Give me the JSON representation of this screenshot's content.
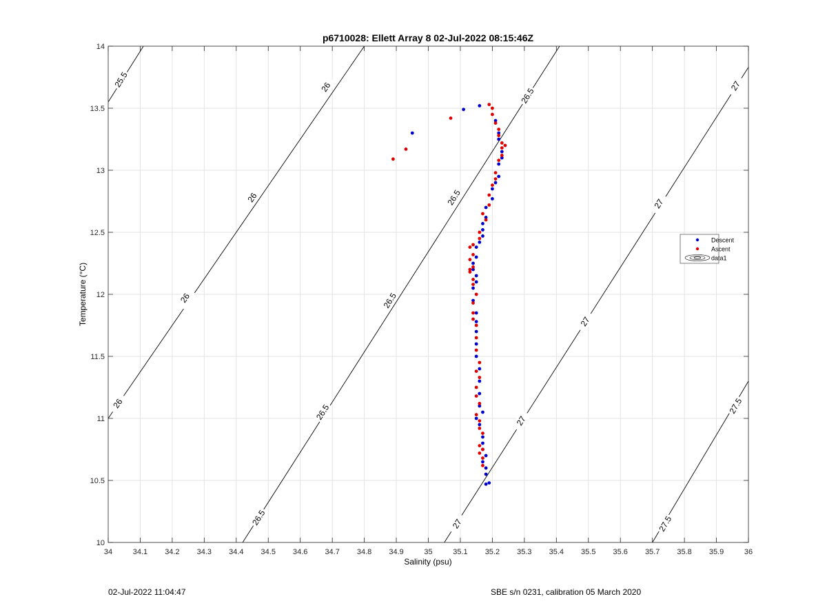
{
  "chart_data": {
    "type": "scatter",
    "title": "p6710028: Ellett Array 8 02-Jul-2022 08:15:46Z",
    "xlabel": "Salinity (psu)",
    "ylabel": "Temperature (°C)",
    "xlim": [
      34,
      36
    ],
    "ylim": [
      10,
      14
    ],
    "xticks": [
      "34",
      "34.1",
      "34.2",
      "34.3",
      "34.4",
      "34.5",
      "34.6",
      "34.7",
      "34.8",
      "34.9",
      "35",
      "35.1",
      "35.2",
      "35.3",
      "35.4",
      "35.5",
      "35.6",
      "35.7",
      "35.8",
      "35.9",
      "36"
    ],
    "yticks": [
      "10",
      "10.5",
      "11",
      "11.5",
      "12",
      "12.5",
      "13",
      "13.5",
      "14"
    ],
    "grid": true,
    "legend": {
      "placement": "right",
      "entries": [
        {
          "label": "Descent",
          "color": "#0000cc",
          "marker": "dot"
        },
        {
          "label": "Ascent",
          "color": "#dd0000",
          "marker": "dot"
        },
        {
          "label": "data1",
          "color": "#000000",
          "marker": "contour"
        }
      ]
    },
    "contours": [
      {
        "label": "25.5",
        "points": [
          [
            34,
            13.55
          ],
          [
            34.11,
            14
          ]
        ],
        "label_positions": [
          [
            34.04,
            13.73
          ]
        ]
      },
      {
        "label": "26",
        "points": [
          [
            34,
            11
          ],
          [
            34.8,
            14
          ]
        ],
        "label_positions": [
          [
            34.03,
            11.12
          ],
          [
            34.24,
            11.97
          ],
          [
            34.45,
            12.78
          ],
          [
            34.68,
            13.67
          ]
        ]
      },
      {
        "label": "26.5",
        "points": [
          [
            34.42,
            10
          ],
          [
            35.41,
            14
          ]
        ],
        "label_positions": [
          [
            34.47,
            10.2
          ],
          [
            34.67,
            11.05
          ],
          [
            34.88,
            11.95
          ],
          [
            35.08,
            12.78
          ],
          [
            35.31,
            13.6
          ]
        ]
      },
      {
        "label": "27",
        "points": [
          [
            35.05,
            10
          ],
          [
            36,
            13.83
          ]
        ],
        "label_positions": [
          [
            35.09,
            10.15
          ],
          [
            35.29,
            10.98
          ],
          [
            35.49,
            11.78
          ],
          [
            35.72,
            12.73
          ],
          [
            35.96,
            13.68
          ]
        ]
      },
      {
        "label": "27.5",
        "points": [
          [
            35.7,
            10
          ],
          [
            36,
            11.3
          ]
        ],
        "label_positions": [
          [
            35.74,
            10.15
          ],
          [
            35.96,
            11.1
          ]
        ]
      }
    ],
    "series": [
      {
        "name": "Descent",
        "color": "#0000cc",
        "points": [
          [
            35.16,
            13.52
          ],
          [
            35.11,
            13.49
          ],
          [
            34.95,
            13.3
          ],
          [
            35.21,
            13.4
          ],
          [
            35.22,
            13.3
          ],
          [
            35.22,
            13.25
          ],
          [
            35.23,
            13.15
          ],
          [
            35.23,
            13.1
          ],
          [
            35.22,
            13.05
          ],
          [
            35.22,
            12.95
          ],
          [
            35.21,
            12.9
          ],
          [
            35.2,
            12.85
          ],
          [
            35.2,
            12.77
          ],
          [
            35.18,
            12.7
          ],
          [
            35.18,
            12.62
          ],
          [
            35.17,
            12.57
          ],
          [
            35.17,
            12.52
          ],
          [
            35.17,
            12.47
          ],
          [
            35.16,
            12.42
          ],
          [
            35.15,
            12.38
          ],
          [
            35.15,
            12.3
          ],
          [
            35.14,
            12.25
          ],
          [
            35.14,
            12.2
          ],
          [
            35.15,
            12.15
          ],
          [
            35.15,
            12.1
          ],
          [
            35.14,
            12.05
          ],
          [
            35.14,
            11.95
          ],
          [
            35.15,
            11.85
          ],
          [
            35.15,
            11.78
          ],
          [
            35.15,
            11.7
          ],
          [
            35.15,
            11.6
          ],
          [
            35.15,
            11.5
          ],
          [
            35.16,
            11.4
          ],
          [
            35.16,
            11.3
          ],
          [
            35.16,
            11.2
          ],
          [
            35.16,
            11.1
          ],
          [
            35.17,
            11.05
          ],
          [
            35.15,
            11.0
          ],
          [
            35.16,
            10.95
          ],
          [
            35.17,
            10.85
          ],
          [
            35.17,
            10.8
          ],
          [
            35.17,
            10.75
          ],
          [
            35.18,
            10.7
          ],
          [
            35.17,
            10.65
          ],
          [
            35.18,
            10.6
          ],
          [
            35.18,
            10.55
          ],
          [
            35.19,
            10.48
          ],
          [
            35.18,
            10.47
          ]
        ]
      },
      {
        "name": "Ascent",
        "color": "#dd0000",
        "points": [
          [
            35.19,
            13.53
          ],
          [
            35.2,
            13.5
          ],
          [
            35.07,
            13.42
          ],
          [
            34.93,
            13.17
          ],
          [
            34.89,
            13.09
          ],
          [
            35.2,
            13.45
          ],
          [
            35.21,
            13.38
          ],
          [
            35.22,
            13.33
          ],
          [
            35.22,
            13.28
          ],
          [
            35.23,
            13.22
          ],
          [
            35.24,
            13.2
          ],
          [
            35.23,
            13.18
          ],
          [
            35.23,
            13.12
          ],
          [
            35.22,
            13.08
          ],
          [
            35.21,
            12.98
          ],
          [
            35.21,
            12.93
          ],
          [
            35.2,
            12.88
          ],
          [
            35.19,
            12.8
          ],
          [
            35.19,
            12.72
          ],
          [
            35.17,
            12.65
          ],
          [
            35.18,
            12.6
          ],
          [
            35.16,
            12.5
          ],
          [
            35.16,
            12.45
          ],
          [
            35.14,
            12.4
          ],
          [
            35.13,
            12.38
          ],
          [
            35.14,
            12.32
          ],
          [
            35.13,
            12.28
          ],
          [
            35.14,
            12.22
          ],
          [
            35.13,
            12.2
          ],
          [
            35.13,
            12.18
          ],
          [
            35.14,
            12.12
          ],
          [
            35.14,
            12.08
          ],
          [
            35.15,
            12.0
          ],
          [
            35.14,
            11.93
          ],
          [
            35.14,
            11.85
          ],
          [
            35.14,
            11.8
          ],
          [
            35.15,
            11.75
          ],
          [
            35.15,
            11.65
          ],
          [
            35.15,
            11.55
          ],
          [
            35.16,
            11.45
          ],
          [
            35.15,
            11.38
          ],
          [
            35.16,
            11.33
          ],
          [
            35.15,
            11.25
          ],
          [
            35.15,
            11.18
          ],
          [
            35.16,
            11.12
          ],
          [
            35.15,
            11.03
          ],
          [
            35.16,
            10.98
          ],
          [
            35.16,
            10.92
          ],
          [
            35.17,
            10.88
          ],
          [
            35.16,
            10.78
          ],
          [
            35.17,
            10.75
          ],
          [
            35.16,
            10.72
          ],
          [
            35.17,
            10.68
          ],
          [
            35.17,
            10.62
          ]
        ]
      }
    ]
  },
  "footer": {
    "timestamp": "02-Jul-2022 11:04:47",
    "instrument": "SBE s/n 0231, calibration 05 March 2020"
  }
}
